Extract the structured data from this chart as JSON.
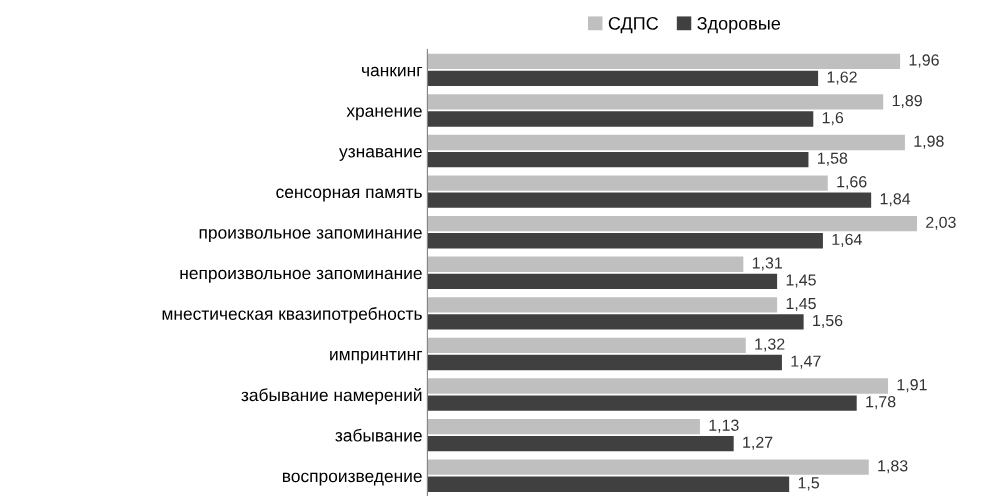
{
  "chart_data": {
    "type": "bar",
    "orientation": "horizontal",
    "categories": [
      "чанкинг",
      "хранение",
      "узнавание",
      "сенсорная память",
      "произвольное запоминание",
      "непроизвольное запоминание",
      "мнестическая квазипотребность",
      "импринтинг",
      "забывание намерений",
      "забывание",
      "воспроизведение"
    ],
    "series": [
      {
        "name": "СДПС",
        "color": "#bfbfbf",
        "values": [
          1.96,
          1.89,
          1.98,
          1.66,
          2.03,
          1.31,
          1.45,
          1.32,
          1.91,
          1.13,
          1.83
        ],
        "value_labels": [
          "1,96",
          "1,89",
          "1,98",
          "1,66",
          "2,03",
          "1,31",
          "1,45",
          "1,32",
          "1,91",
          "1,13",
          "1,83"
        ]
      },
      {
        "name": "Здоровые",
        "color": "#404040",
        "values": [
          1.62,
          1.6,
          1.58,
          1.84,
          1.64,
          1.45,
          1.56,
          1.47,
          1.78,
          1.27,
          1.5
        ],
        "value_labels": [
          "1,62",
          "1,6",
          "1,58",
          "1,84",
          "1,64",
          "1,45",
          "1,56",
          "1,47",
          "1,78",
          "1,27",
          "1,5"
        ]
      }
    ],
    "tick_labels": "y",
    "grid": false,
    "legend": "top"
  }
}
